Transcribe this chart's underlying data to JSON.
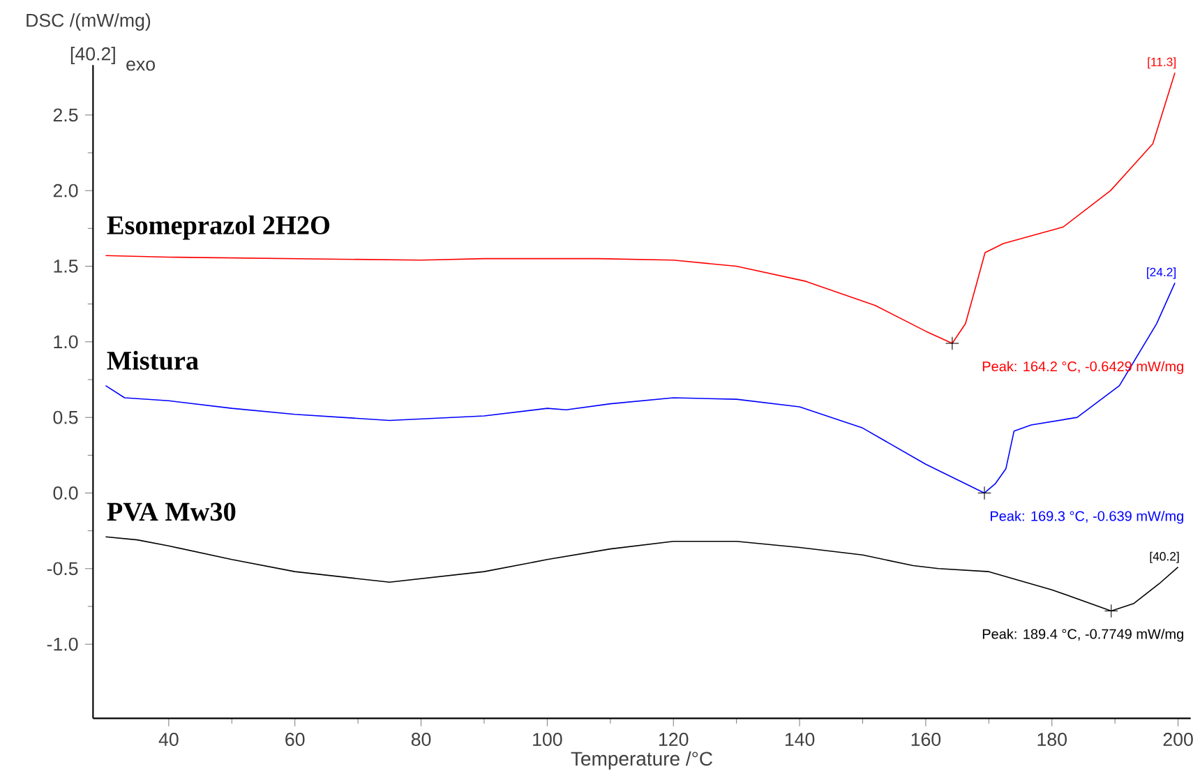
{
  "chart_data": {
    "type": "line",
    "ylabel": "DSC /(mW/mg)",
    "xlabel": "Temperature /°C",
    "xlim": [
      28,
      202
    ],
    "ylim": [
      -1.49,
      2.83
    ],
    "xticks": [
      40,
      60,
      80,
      100,
      120,
      140,
      160,
      180,
      200
    ],
    "yticks": [
      {
        "value": -1.0,
        "label": "-1.0"
      },
      {
        "value": -0.5,
        "label": "-0.5"
      },
      {
        "value": 0.0,
        "label": "0.0"
      },
      {
        "value": 0.5,
        "label": "0.5"
      },
      {
        "value": 1.0,
        "label": "1.0"
      },
      {
        "value": 1.5,
        "label": "1.5"
      },
      {
        "value": 2.0,
        "label": "2.0"
      },
      {
        "value": 2.5,
        "label": "2.5"
      }
    ],
    "series": [
      {
        "name": "Esomeprazol 2H2O",
        "color": "#ff0000",
        "x": [
          30,
          40,
          60,
          80,
          90,
          108,
          120,
          130,
          141,
          152,
          160,
          164.2,
          166.3,
          167.9,
          169.4,
          172.3,
          181.8,
          189.3,
          196,
          199.5
        ],
        "values": [
          1.57,
          1.56,
          1.55,
          1.54,
          1.55,
          1.55,
          1.54,
          1.5,
          1.4,
          1.24,
          1.07,
          0.99,
          1.12,
          1.36,
          1.59,
          1.65,
          1.76,
          2.0,
          2.31,
          2.78
        ]
      },
      {
        "name": "Mistura",
        "color": "#0000ff",
        "x": [
          30,
          33,
          40,
          50,
          60,
          75,
          90,
          100,
          103,
          110,
          120,
          130,
          140,
          150,
          160,
          169.3,
          171,
          172.7,
          174,
          176.7,
          184,
          190.7,
          196.6,
          199.5
        ],
        "values": [
          0.71,
          0.63,
          0.61,
          0.56,
          0.52,
          0.48,
          0.51,
          0.56,
          0.55,
          0.59,
          0.63,
          0.62,
          0.57,
          0.43,
          0.19,
          0.0,
          0.06,
          0.16,
          0.41,
          0.45,
          0.5,
          0.71,
          1.12,
          1.39
        ]
      },
      {
        "name": "PVA Mw30",
        "color": "#000000",
        "x": [
          30,
          35,
          40,
          50,
          60,
          75,
          90,
          100,
          110,
          120,
          130,
          140,
          150,
          158,
          162,
          170,
          180,
          189.4,
          193,
          197,
          200
        ],
        "values": [
          -0.29,
          -0.31,
          -0.35,
          -0.44,
          -0.52,
          -0.59,
          -0.52,
          -0.44,
          -0.37,
          -0.32,
          -0.32,
          -0.36,
          -0.41,
          -0.48,
          -0.5,
          -0.52,
          -0.64,
          -0.78,
          -0.73,
          -0.6,
          -0.49
        ]
      }
    ],
    "annotations": [
      "[40.2]",
      "exo",
      {
        "text": "Peak: 164.2 °C, -0.6429 mW/mg",
        "x": 164.2,
        "y": 0.99
      },
      {
        "text": "Peak: 169.3 °C, -0.639 mW/mg",
        "x": 169.3,
        "y": 0.0
      },
      {
        "text": "Peak: 189.4 °C, -0.7749 mW/mg",
        "x": 189.4,
        "y": -0.78
      },
      {
        "text": "[11.3]",
        "x": 199.5,
        "y": 2.78
      },
      {
        "text": "[24.2]",
        "x": 199.5,
        "y": 1.39
      },
      {
        "text": "[40.2]",
        "x": 200,
        "y": -0.49
      }
    ],
    "marker": "none",
    "grid": false,
    "legend": false
  }
}
